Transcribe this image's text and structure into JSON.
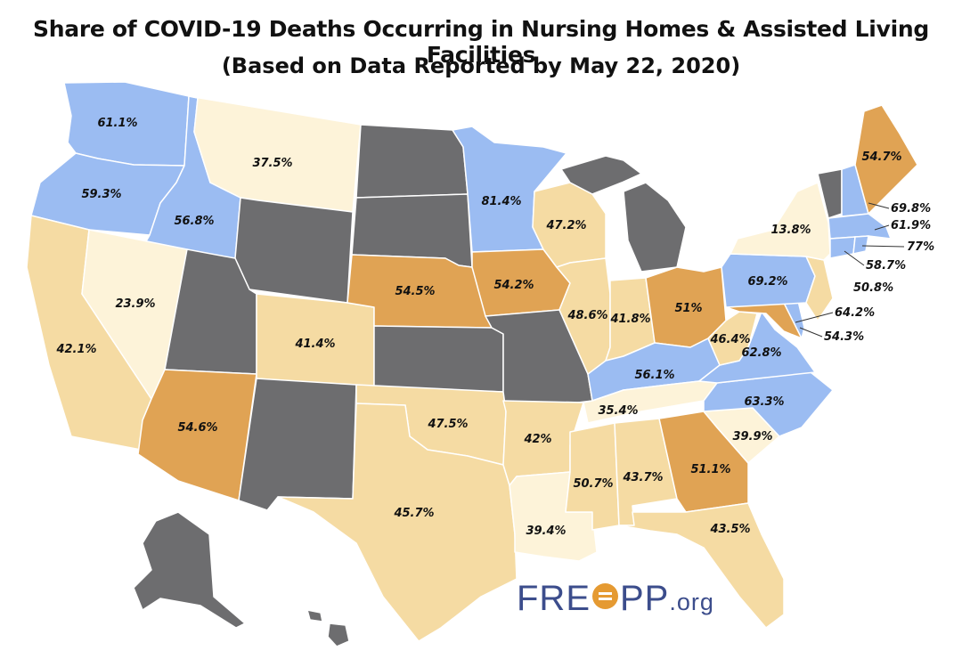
{
  "title": "Share of COVID-19 Deaths Occurring in Nursing Homes & Assisted Living Facilities",
  "subtitle": "(Based on Data Reported by May 22, 2020)",
  "logo": {
    "part1": "FRE",
    "part2": "PP",
    "org": ".org"
  },
  "colors": {
    "blue": "#9bbcf2",
    "dark_orange": "#e0a354",
    "light_orange": "#f5dba3",
    "cream": "#fdf3d9",
    "no_data": "#6d6d6f"
  },
  "states": [
    {
      "id": "WA",
      "label": "61.1%",
      "color": "blue"
    },
    {
      "id": "OR",
      "label": "59.3%",
      "color": "blue"
    },
    {
      "id": "ID",
      "label": "56.8%",
      "color": "blue"
    },
    {
      "id": "MT",
      "label": "37.5%",
      "color": "cream"
    },
    {
      "id": "CA",
      "label": "42.1%",
      "color": "light_orange"
    },
    {
      "id": "NV",
      "label": "23.9%",
      "color": "cream"
    },
    {
      "id": "AZ",
      "label": "54.6%",
      "color": "dark_orange"
    },
    {
      "id": "CO",
      "label": "41.4%",
      "color": "light_orange"
    },
    {
      "id": "NE",
      "label": "54.5%",
      "color": "dark_orange"
    },
    {
      "id": "OK",
      "label": "47.5%",
      "color": "light_orange"
    },
    {
      "id": "TX",
      "label": "45.7%",
      "color": "light_orange"
    },
    {
      "id": "MN",
      "label": "81.4%",
      "color": "blue"
    },
    {
      "id": "IA",
      "label": "54.2%",
      "color": "dark_orange"
    },
    {
      "id": "WI",
      "label": "47.2%",
      "color": "light_orange"
    },
    {
      "id": "IL",
      "label": "48.6%",
      "color": "light_orange"
    },
    {
      "id": "AR",
      "label": "42%",
      "color": "light_orange"
    },
    {
      "id": "LA",
      "label": "39.4%",
      "color": "cream"
    },
    {
      "id": "MS",
      "label": "50.7%",
      "color": "light_orange"
    },
    {
      "id": "IN",
      "label": "41.8%",
      "color": "light_orange"
    },
    {
      "id": "OH",
      "label": "51%",
      "color": "dark_orange"
    },
    {
      "id": "KY",
      "label": "56.1%",
      "color": "blue"
    },
    {
      "id": "TN",
      "label": "35.4%",
      "color": "cream"
    },
    {
      "id": "AL",
      "label": "43.7%",
      "color": "light_orange"
    },
    {
      "id": "GA",
      "label": "51.1%",
      "color": "dark_orange"
    },
    {
      "id": "FL",
      "label": "43.5%",
      "color": "light_orange"
    },
    {
      "id": "SC",
      "label": "39.9%",
      "color": "cream"
    },
    {
      "id": "NC",
      "label": "63.3%",
      "color": "blue"
    },
    {
      "id": "VA",
      "label": "62.8%",
      "color": "blue"
    },
    {
      "id": "WV",
      "label": "46.4%",
      "color": "light_orange"
    },
    {
      "id": "MD",
      "label": "64.2%",
      "color": "dark_orange"
    },
    {
      "id": "DE",
      "label": "54.3%",
      "color": "blue"
    },
    {
      "id": "PA",
      "label": "69.2%",
      "color": "blue"
    },
    {
      "id": "NJ",
      "label": "50.8%",
      "color": "light_orange"
    },
    {
      "id": "NY",
      "label": "13.8%",
      "color": "cream"
    },
    {
      "id": "CT",
      "label": "58.7%",
      "color": "blue"
    },
    {
      "id": "RI",
      "label": "77%",
      "color": "blue"
    },
    {
      "id": "MA",
      "label": "61.9%",
      "color": "blue"
    },
    {
      "id": "NH",
      "label": "69.8%",
      "color": "blue"
    },
    {
      "id": "ME",
      "label": "54.7%",
      "color": "dark_orange"
    },
    {
      "id": "VT",
      "label": "",
      "color": "no_data"
    },
    {
      "id": "MI",
      "label": "",
      "color": "no_data"
    },
    {
      "id": "ND",
      "label": "",
      "color": "no_data"
    },
    {
      "id": "SD",
      "label": "",
      "color": "no_data"
    },
    {
      "id": "KS",
      "label": "",
      "color": "no_data"
    },
    {
      "id": "MO",
      "label": "",
      "color": "no_data"
    },
    {
      "id": "WY",
      "label": "",
      "color": "no_data"
    },
    {
      "id": "UT",
      "label": "",
      "color": "no_data"
    },
    {
      "id": "NM",
      "label": "",
      "color": "no_data"
    },
    {
      "id": "AK",
      "label": "",
      "color": "no_data"
    },
    {
      "id": "HI",
      "label": "",
      "color": "no_data"
    }
  ]
}
